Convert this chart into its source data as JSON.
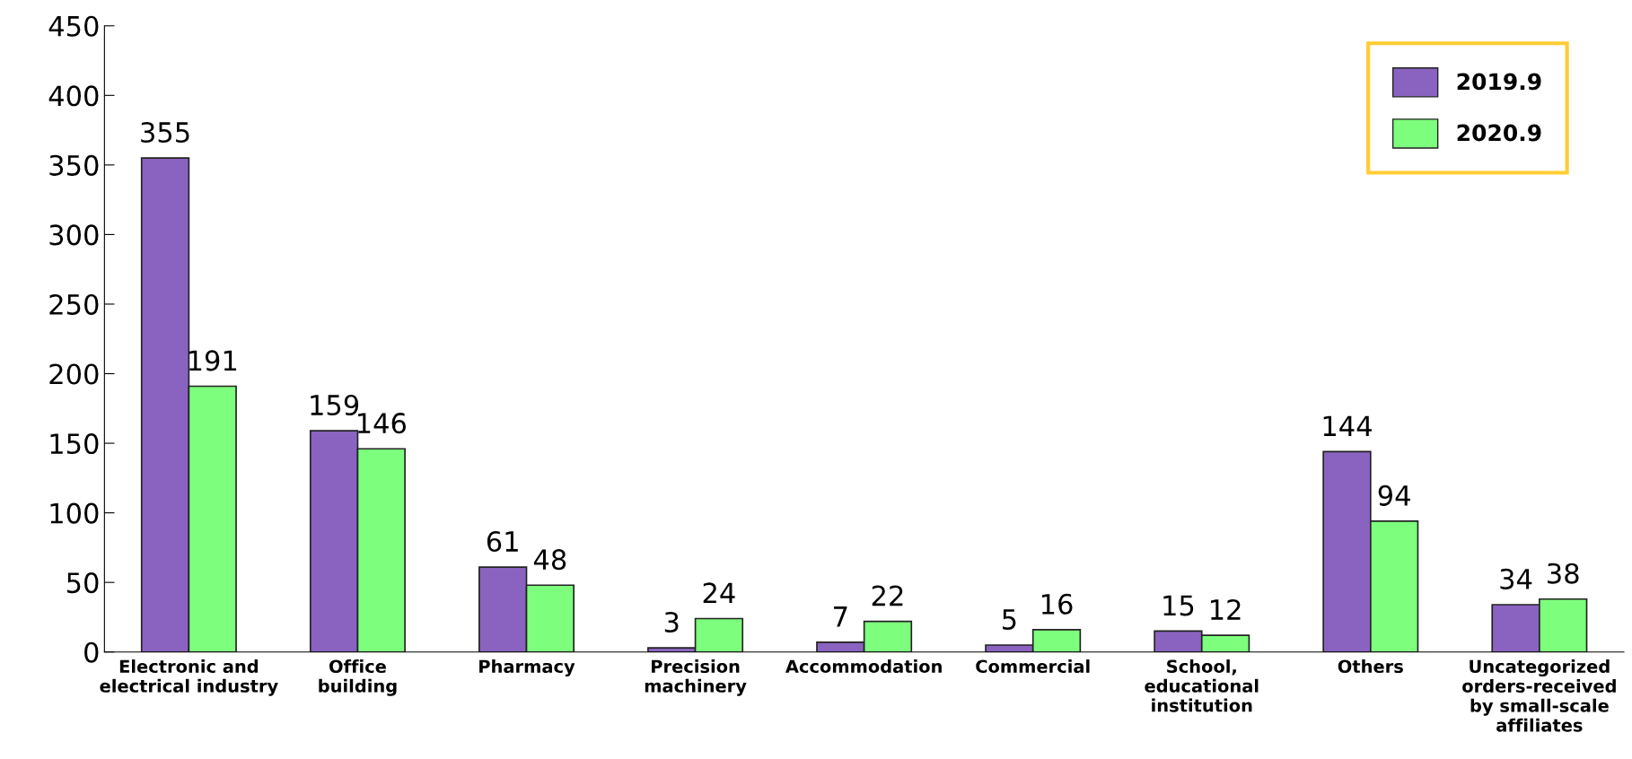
{
  "chart_data": {
    "type": "bar",
    "categories": [
      "Electronic and\nelectrical industry",
      "Office\nbuilding",
      "Pharmacy",
      "Precision\nmachinery",
      "Accommodation",
      "Commercial",
      "School,\neducational\ninstitution",
      "Others",
      "Uncategorized\norders-received\nby small-scale\naffiliates"
    ],
    "series": [
      {
        "name": "2019.9",
        "color": "#8a63c0",
        "values": [
          355,
          159,
          61,
          3,
          7,
          5,
          15,
          144,
          34
        ]
      },
      {
        "name": "2020.9",
        "color": "#7dff7d",
        "values": [
          191,
          146,
          48,
          24,
          22,
          16,
          12,
          94,
          38
        ]
      }
    ],
    "ylim": [
      0,
      450
    ],
    "yticks": [
      0,
      50,
      100,
      150,
      200,
      250,
      300,
      350,
      400,
      450
    ],
    "data_labels": true,
    "legend": "top right",
    "grid": false
  }
}
